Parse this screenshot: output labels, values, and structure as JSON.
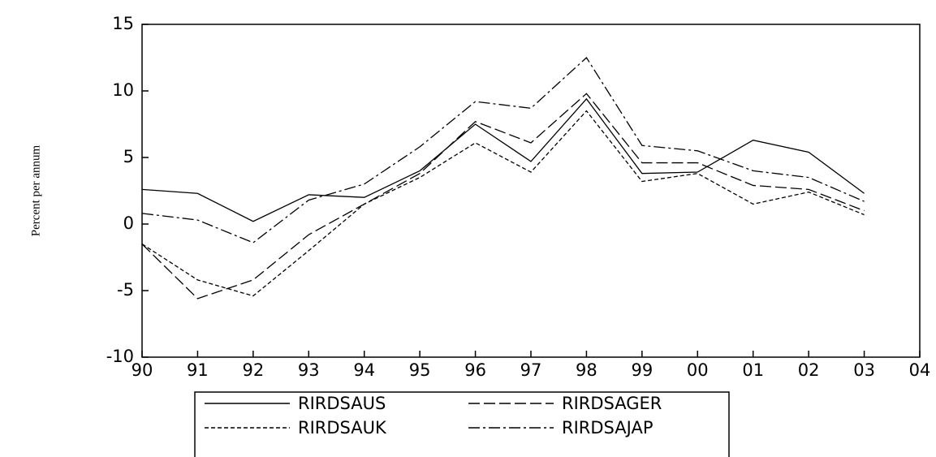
{
  "chart_data": {
    "type": "line",
    "y_label": "Percent per annum",
    "categories": [
      "90",
      "91",
      "92",
      "93",
      "94",
      "95",
      "96",
      "97",
      "98",
      "99",
      "00",
      "01",
      "02",
      "03",
      "04"
    ],
    "ylim": [
      -10,
      15
    ],
    "yticks": [
      -10,
      -5,
      0,
      5,
      10,
      15
    ],
    "legend": "bottom",
    "series": [
      {
        "name": "RIRDSAUS",
        "color": "#000000",
        "dash": "solid",
        "values": [
          2.6,
          2.3,
          0.2,
          2.2,
          2.0,
          4.0,
          7.5,
          4.7,
          9.4,
          3.8,
          3.9,
          6.3,
          5.4,
          2.3,
          null
        ]
      },
      {
        "name": "RIRDSAGER",
        "color": "#000000",
        "dash": "long-dash",
        "values": [
          -1.5,
          -5.6,
          -4.2,
          -0.8,
          1.5,
          3.8,
          7.7,
          6.1,
          9.8,
          4.6,
          4.6,
          2.9,
          2.6,
          1.0,
          null
        ]
      },
      {
        "name": "RIRDSAUK",
        "color": "#000000",
        "dash": "short-dash",
        "values": [
          -1.5,
          -4.2,
          -5.4,
          -2.0,
          1.5,
          3.5,
          6.1,
          3.9,
          8.5,
          3.2,
          3.8,
          1.5,
          2.4,
          0.7,
          null
        ]
      },
      {
        "name": "RIRDSAJAP",
        "color": "#000000",
        "dash": "dash-dot",
        "values": [
          0.8,
          0.3,
          -1.4,
          1.8,
          3.0,
          5.8,
          9.2,
          8.7,
          12.5,
          5.9,
          5.5,
          4.0,
          3.5,
          1.7,
          null
        ]
      }
    ]
  }
}
